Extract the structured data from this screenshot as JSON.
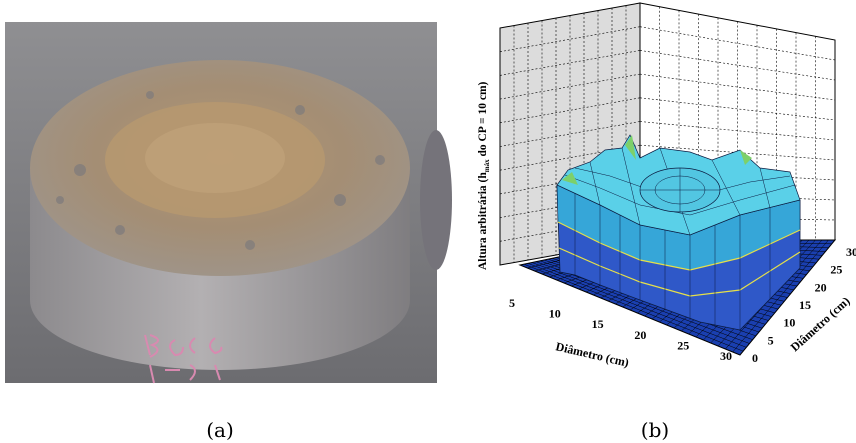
{
  "panels": [
    {
      "caption": "(a)"
    },
    {
      "caption": "(b)",
      "z_label": {
        "before": "Altura arbitrária (h",
        "sub": "máx",
        "after": " do CP = 10 cm)"
      },
      "x_label": "Diâmetro (cm)",
      "y_label": "Diâmetro (cm)",
      "x_ticks": [
        "5",
        "10",
        "15",
        "20",
        "25",
        "30"
      ],
      "y_ticks": [
        "0",
        "5",
        "10",
        "15",
        "20",
        "25",
        "30"
      ]
    }
  ]
}
